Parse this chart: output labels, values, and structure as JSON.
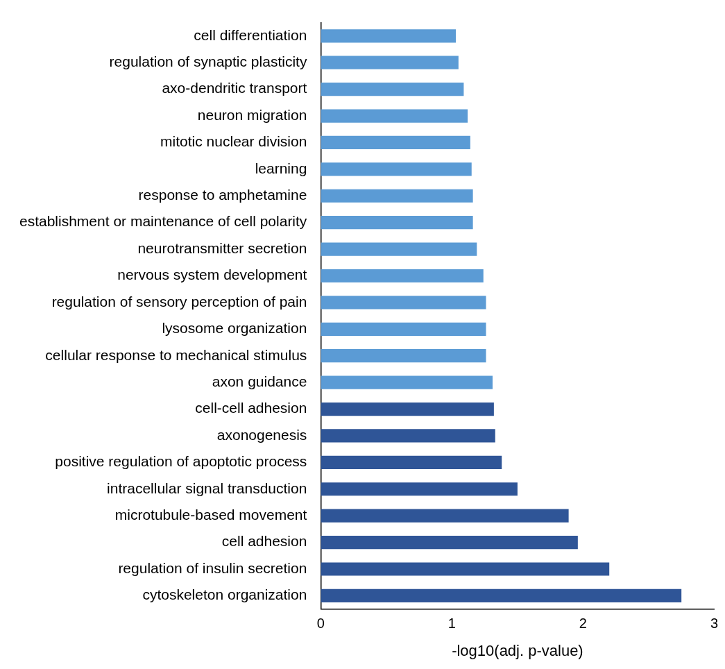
{
  "chart_data": {
    "type": "bar",
    "orientation": "horizontal",
    "xlabel": "-log10(adj. p-value)",
    "categories": [
      "cell differentiation",
      "regulation of synaptic plasticity",
      "axo-dendritic transport",
      "neuron migration",
      "mitotic nuclear division",
      "learning",
      "response to amphetamine",
      "establishment or maintenance of cell polarity",
      "neurotransmitter secretion",
      "nervous system development",
      "regulation of sensory perception of pain",
      "lysosome organization",
      "cellular response to mechanical stimulus",
      "axon guidance",
      "cell-cell adhesion",
      "axonogenesis",
      "positive regulation of apoptotic process",
      "intracellular signal transduction",
      "microtubule-based movement",
      "cell adhesion",
      "regulation of insulin secretion",
      "cytoskeleton organization"
    ],
    "values": [
      1.03,
      1.05,
      1.09,
      1.12,
      1.14,
      1.15,
      1.16,
      1.16,
      1.19,
      1.24,
      1.26,
      1.26,
      1.26,
      1.31,
      1.32,
      1.33,
      1.38,
      1.5,
      1.89,
      1.96,
      2.2,
      2.75
    ],
    "colors": [
      "#5b9bd5",
      "#5b9bd5",
      "#5b9bd5",
      "#5b9bd5",
      "#5b9bd5",
      "#5b9bd5",
      "#5b9bd5",
      "#5b9bd5",
      "#5b9bd5",
      "#5b9bd5",
      "#5b9bd5",
      "#5b9bd5",
      "#5b9bd5",
      "#5b9bd5",
      "#2f5597",
      "#2f5597",
      "#2f5597",
      "#2f5597",
      "#2f5597",
      "#2f5597",
      "#2f5597",
      "#2f5597"
    ],
    "xlim": [
      0,
      3
    ],
    "xticks": [
      0,
      1,
      2,
      3
    ],
    "grid": false,
    "legend": false
  }
}
